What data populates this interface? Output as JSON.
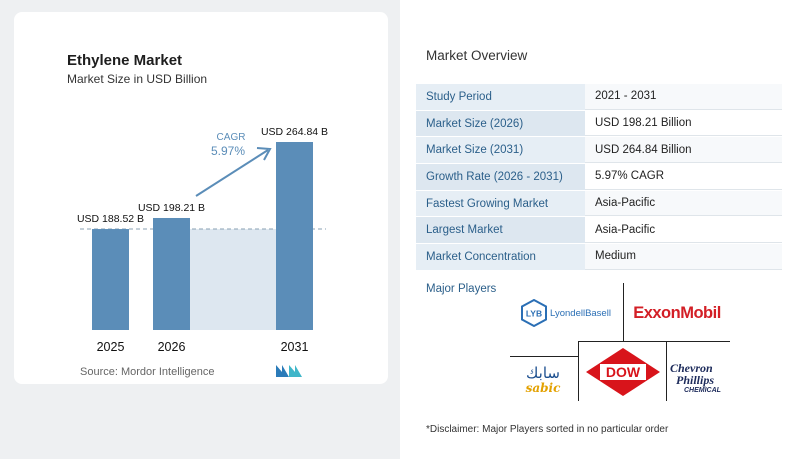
{
  "chart_data": {
    "type": "bar",
    "title": "Ethylene Market",
    "subtitle": "Market Size in USD Billion",
    "categories": [
      "2025",
      "2026",
      "2031"
    ],
    "values": [
      188.52,
      198.21,
      264.84
    ],
    "value_labels": [
      "USD 188.52 B",
      "USD 198.21 B",
      "USD 264.84 B"
    ],
    "cagr_label": "CAGR",
    "cagr_value": "5.97%",
    "colors": {
      "bar": "#5b8db8",
      "area": "#dde7f0",
      "dashed": "#8aa0b3",
      "arrow": "#5b8db8",
      "cagr": "#5b8db8"
    }
  },
  "source": "Source:  Mordor Intelligence",
  "overview": {
    "title": "Market Overview",
    "rows": [
      {
        "key": "Study Period",
        "value": "2021 - 2031"
      },
      {
        "key": "Market Size (2026)",
        "value": "USD 198.21 Billion"
      },
      {
        "key": "Market Size (2031)",
        "value": "USD 264.84 Billion"
      },
      {
        "key": "Growth Rate (2026 - 2031)",
        "value": "5.97% CAGR"
      },
      {
        "key": "Fastest Growing Market",
        "value": "Asia-Pacific"
      },
      {
        "key": "Largest Market",
        "value": "Asia-Pacific"
      },
      {
        "key": "Market Concentration",
        "value": "Medium"
      }
    ]
  },
  "players": {
    "title": "Major Players",
    "lyb": "LYB",
    "lyondell": "LyondellBasell",
    "exxon": "ExxonMobil",
    "sabic_arabic": "سابك",
    "sabic": "sabic",
    "dow": "DOW",
    "chevron1": "Chevron",
    "chevron2": "Phillips",
    "chevron3": "CHEMICAL"
  },
  "disclaimer": "*Disclaimer: Major Players sorted in no particular order"
}
